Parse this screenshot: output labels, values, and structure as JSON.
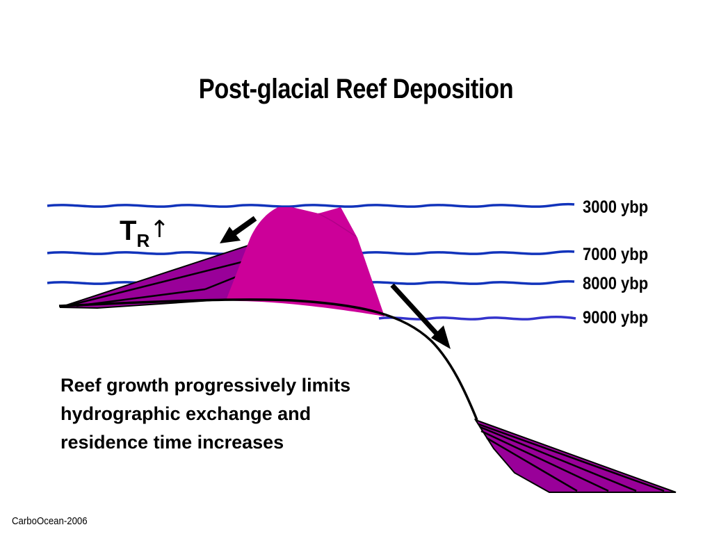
{
  "title": "Post-glacial Reef Deposition",
  "sea_levels": [
    {
      "label": "3000 ybp"
    },
    {
      "label": "7000 ybp"
    },
    {
      "label": "8000 ybp"
    },
    {
      "label": "9000 ybp"
    }
  ],
  "residence_time": {
    "symbol": "T",
    "subscript": "R",
    "arrow": "↑"
  },
  "caption": {
    "line1": "Reef growth progressively limits",
    "line2": "hydrographic exchange and",
    "line3": "residence time increases"
  },
  "footer": "CarboOcean-2006",
  "colors": {
    "sea_level": "#1133bb",
    "sea_level_deep": "#3333cc",
    "reef": "#cc0099",
    "sediment": "#990099",
    "outline": "#000000"
  }
}
